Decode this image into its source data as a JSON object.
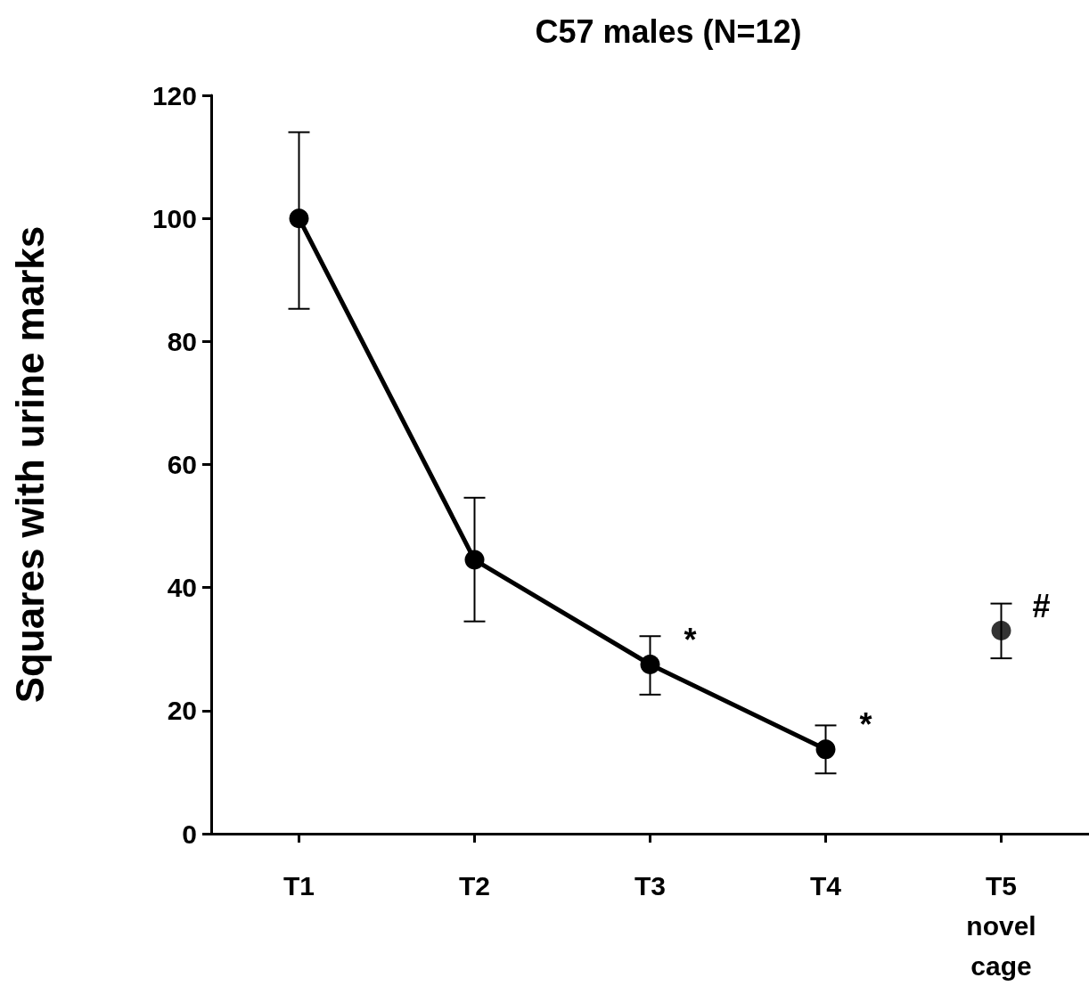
{
  "chart_data": {
    "type": "line",
    "title": "C57 males (N=12)",
    "ylabel": "Squares with urine marks",
    "categories": [
      "T1",
      "T2",
      "T3",
      "T4",
      "T5\nnovel\ncage"
    ],
    "series": [
      {
        "color": "#000000",
        "values": [
          100,
          44.5,
          27.5,
          13.7,
          null
        ],
        "errors": [
          [
            85.3,
            114
          ],
          [
            34.5,
            54.6
          ],
          [
            22.6,
            32.1
          ],
          [
            9.8,
            17.6
          ],
          null
        ]
      },
      {
        "type": "scatter",
        "color": "#000000",
        "values": [
          null,
          null,
          null,
          null,
          33
        ],
        "errors": [
          null,
          null,
          null,
          null,
          [
            28.5,
            37.4
          ]
        ]
      }
    ],
    "annotations": [
      {
        "text": "*",
        "x": "T3",
        "y": 27.5
      },
      {
        "text": "*",
        "x": "T4",
        "y": 13.7
      },
      {
        "text": "#",
        "x": "T5\nnovel\ncage",
        "y": 33
      }
    ],
    "ylim": [
      0,
      120
    ],
    "yticks": [
      0,
      20,
      40,
      60,
      80,
      100,
      120
    ],
    "grid": false,
    "marker": "circle",
    "line_style": "solid"
  }
}
